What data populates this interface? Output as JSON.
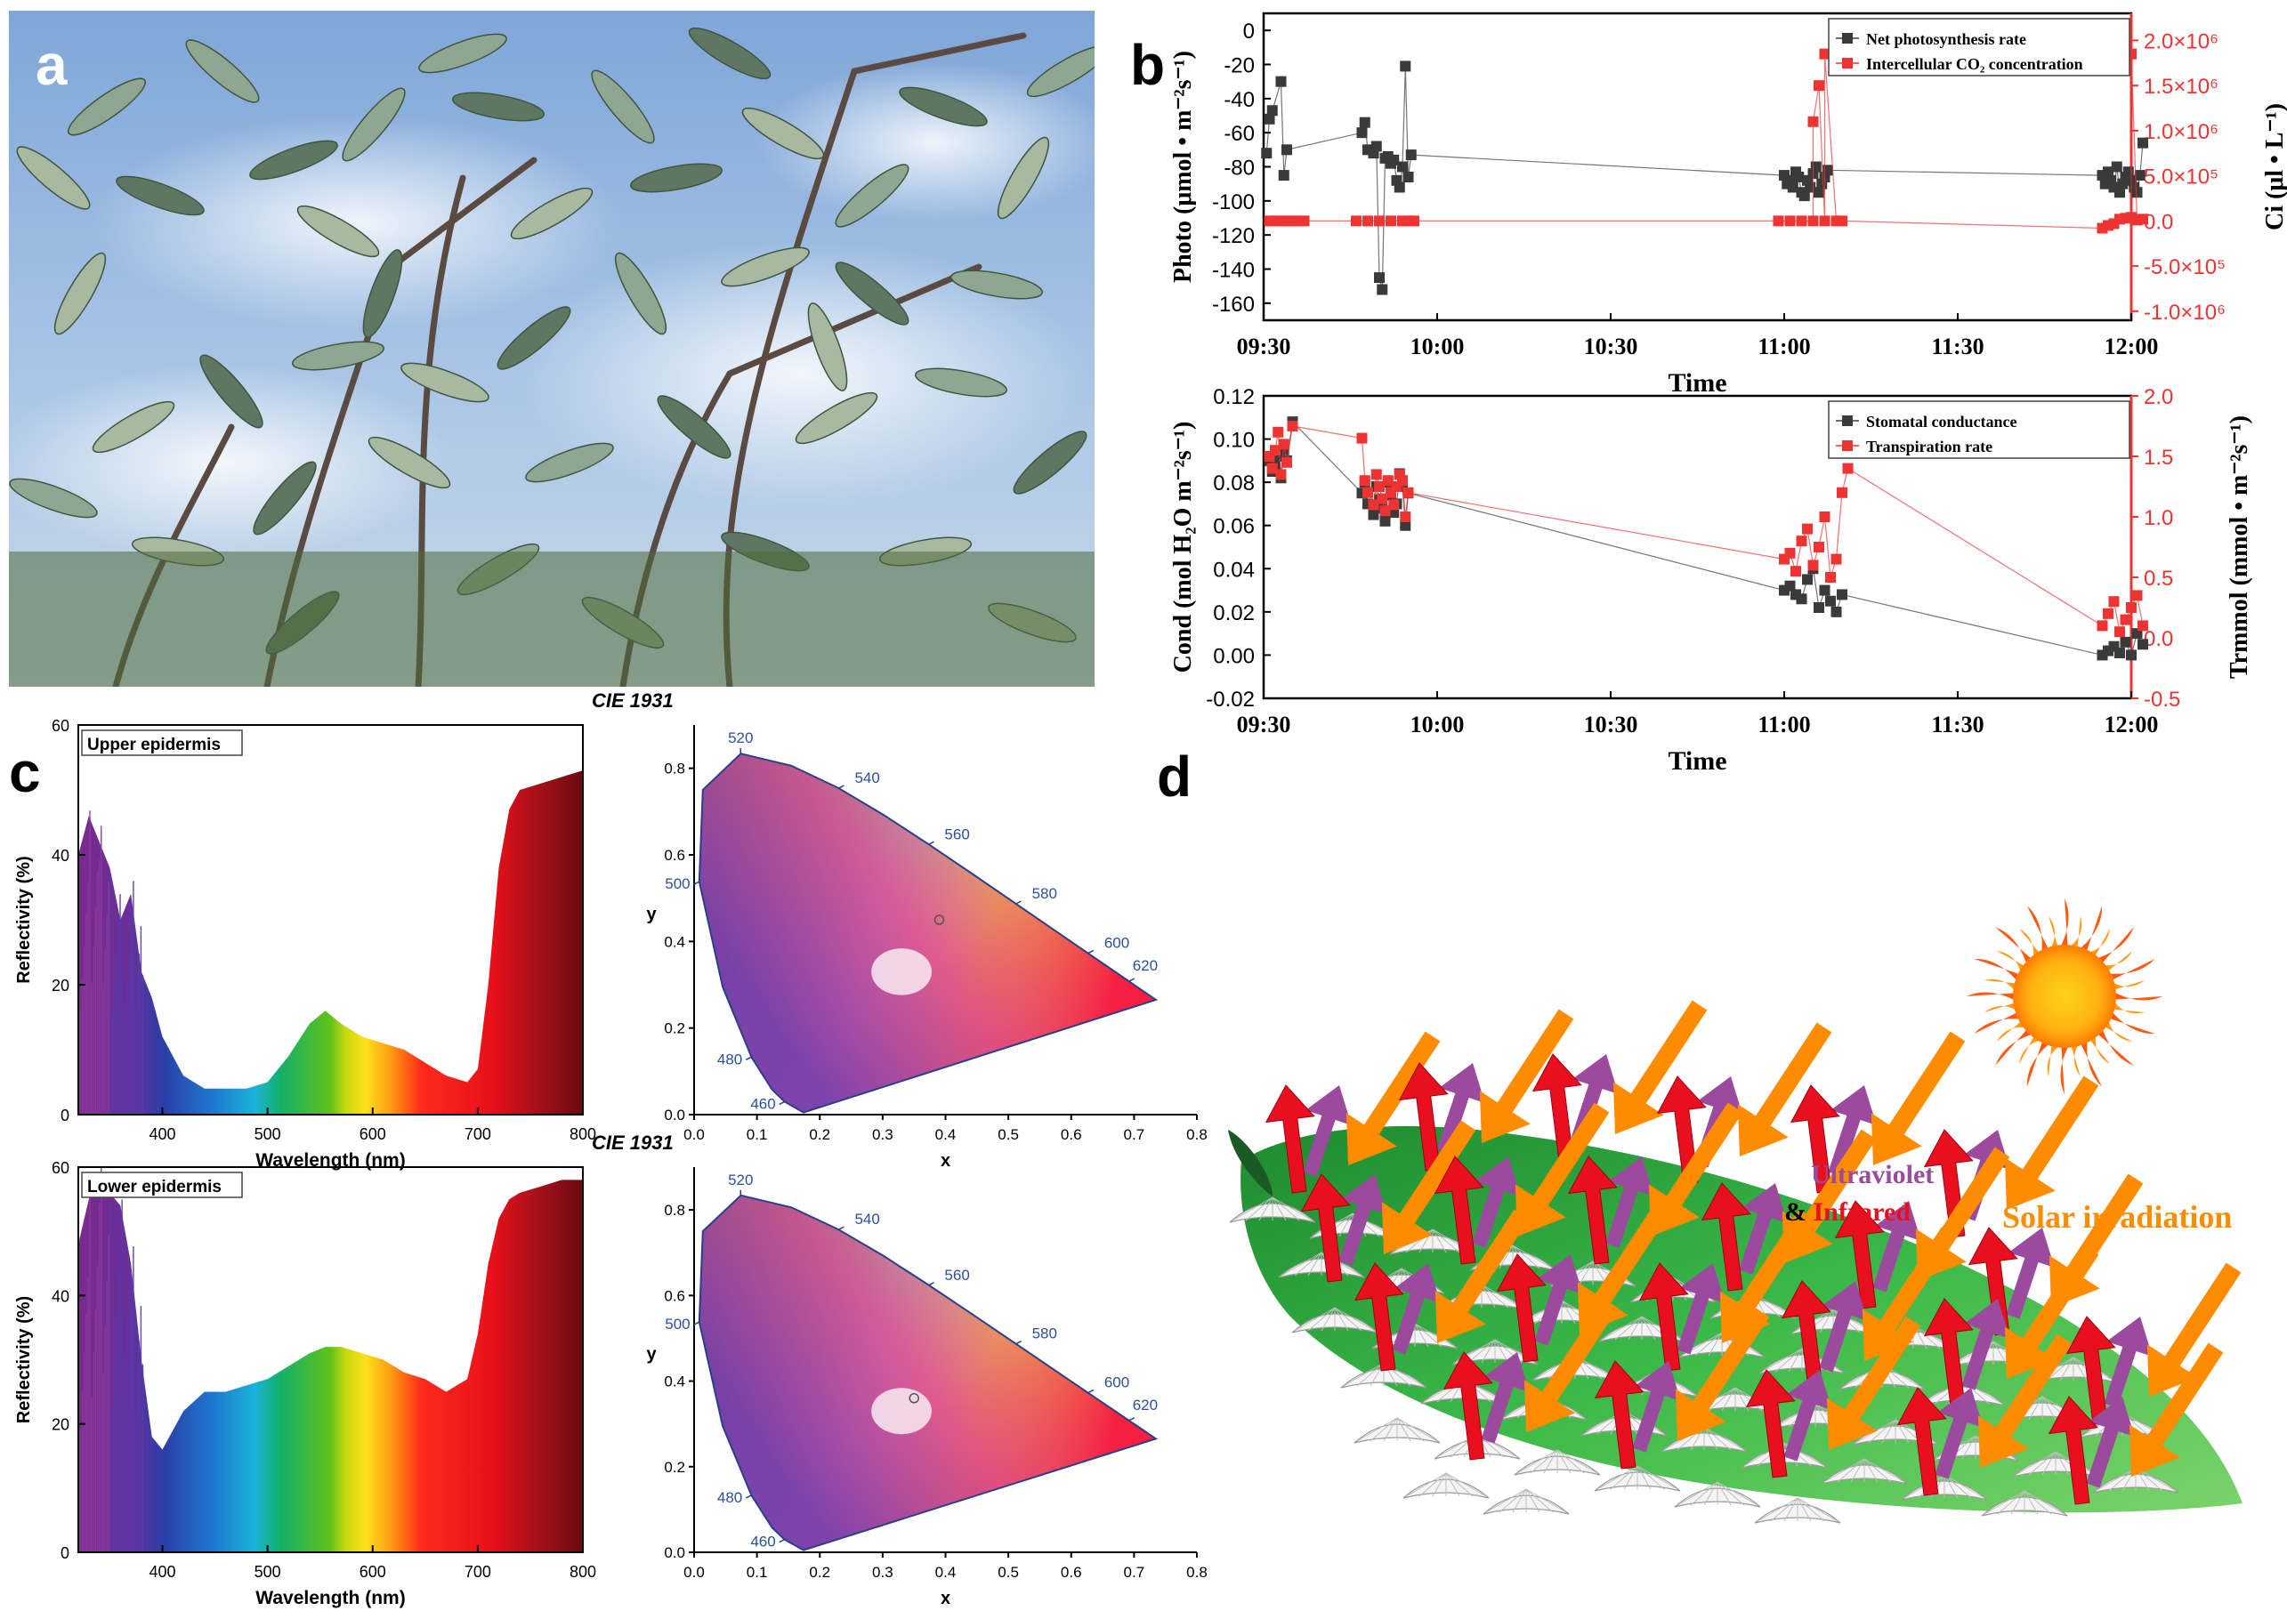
{
  "panel_labels": {
    "a": "a",
    "b": "b",
    "c": "c",
    "d": "d"
  },
  "photo": {
    "subject": "Sea buckthorn-like silvery willow leaves against blue sky"
  },
  "chart_data": [
    {
      "id": "b-top",
      "type": "scatter",
      "title": "",
      "xlabel": "Time",
      "ylabel": "Photo (μmol • m⁻²s⁻¹)",
      "y2label": "Ci (μl • L⁻¹)",
      "xticks": [
        "09:30",
        "10:00",
        "10:30",
        "11:00",
        "11:30",
        "12:00"
      ],
      "xlim_minutes": [
        0,
        150
      ],
      "ylim": [
        -170,
        10
      ],
      "yticks": [
        "0",
        "-20",
        "-40",
        "-60",
        "-80",
        "-100",
        "-120",
        "-140",
        "-160"
      ],
      "y2lim": [
        -1100000,
        2300000
      ],
      "y2ticks": [
        "2.0×10⁶",
        "1.5×10⁶",
        "1.0×10⁶",
        "5.0×10⁵",
        "0.0",
        "-5.0×10⁵",
        "-1.0×10⁶"
      ],
      "legend": [
        "Net photosynthesis rate",
        "Intercellular CO₂ concentration"
      ],
      "series": [
        {
          "name": "Net photosynthesis rate",
          "color": "#3a3a3a",
          "axis": "left",
          "x": [
            0.5,
            1,
            1.5,
            3,
            3.5,
            4,
            17,
            17.5,
            18,
            19,
            19.5,
            20,
            20.5,
            21,
            21.5,
            22,
            22.5,
            23,
            23.5,
            24,
            24.5,
            25,
            25.5,
            90,
            90.5,
            91,
            91.5,
            92,
            92.5,
            93,
            93.5,
            94,
            94.5,
            95,
            95.5,
            96,
            96.5,
            97,
            97.5,
            145,
            145.5,
            146,
            146.5,
            147,
            147.5,
            148,
            148.5,
            149,
            149.5,
            150,
            150.5,
            151,
            151.5,
            152
          ],
          "y": [
            -72,
            -52,
            -47,
            -30,
            -85,
            -70,
            -60,
            -54,
            -70,
            -72,
            -68,
            -145,
            -152,
            -75,
            -74,
            -78,
            -76,
            -88,
            -92,
            -80,
            -21,
            -86,
            -73,
            -85,
            -90,
            -88,
            -92,
            -83,
            -86,
            -95,
            -97,
            -88,
            -92,
            -84,
            -80,
            -95,
            -90,
            -86,
            -82,
            -85,
            -90,
            -83,
            -88,
            -92,
            -80,
            -95,
            -90,
            -86,
            -83,
            -88,
            -92,
            -95,
            -85,
            -66
          ]
        },
        {
          "name": "Intercellular CO₂ concentration",
          "color": "#ee3333",
          "axis": "right",
          "x": [
            1,
            2,
            3,
            4,
            5,
            6,
            7,
            16,
            18,
            20,
            22,
            24,
            25,
            26,
            89,
            91,
            93,
            95,
            97,
            99,
            100,
            95,
            96,
            97,
            145,
            146,
            147,
            148,
            149,
            150,
            151,
            152,
            150
          ],
          "y": [
            0,
            0,
            0,
            0,
            0,
            0,
            0,
            0,
            0,
            0,
            0,
            0,
            0,
            0,
            0,
            0,
            0,
            0,
            0,
            0,
            0,
            1100000,
            1500000,
            1850000,
            -80000,
            -50000,
            -30000,
            20000,
            30000,
            40000,
            10000,
            20000,
            1850000
          ]
        }
      ]
    },
    {
      "id": "b-bottom",
      "type": "scatter",
      "xlabel": "Time",
      "ylabel": "Cond (mol H₂O m⁻²s⁻¹)",
      "y2label": "Trmmol (mmol • m⁻²s⁻¹)",
      "xticks": [
        "09:30",
        "10:00",
        "10:30",
        "11:00",
        "11:30",
        "12:00"
      ],
      "xlim_minutes": [
        0,
        150
      ],
      "ylim": [
        -0.02,
        0.12
      ],
      "yticks": [
        "0.12",
        "0.10",
        "0.08",
        "0.06",
        "0.04",
        "0.02",
        "0.00",
        "-0.02"
      ],
      "y2lim": [
        -0.5,
        2.0
      ],
      "y2ticks": [
        "2.0",
        "1.5",
        "1.0",
        "0.5",
        "0.0",
        "-0.5"
      ],
      "legend": [
        "Stomatal conductance",
        "Transpiration rate"
      ],
      "series": [
        {
          "name": "Stomatal conductance",
          "color": "#3a3a3a",
          "axis": "left",
          "x": [
            1,
            1.5,
            2,
            2.5,
            3,
            3.5,
            4,
            5,
            17,
            17.5,
            18,
            19,
            19.5,
            20,
            20.5,
            21,
            21.5,
            22,
            22.5,
            23,
            23.5,
            24,
            24.5,
            25,
            90,
            91,
            92,
            93,
            94,
            95,
            96,
            97,
            98,
            99,
            100,
            145,
            146,
            147,
            148,
            149,
            150,
            151,
            152
          ],
          "y": [
            0.09,
            0.085,
            0.088,
            0.092,
            0.082,
            0.095,
            0.09,
            0.108,
            0.075,
            0.08,
            0.07,
            0.065,
            0.078,
            0.072,
            0.068,
            0.062,
            0.08,
            0.074,
            0.066,
            0.07,
            0.084,
            0.078,
            0.06,
            0.075,
            0.03,
            0.032,
            0.028,
            0.026,
            0.035,
            0.04,
            0.022,
            0.03,
            0.025,
            0.02,
            0.028,
            0.0,
            0.002,
            0.004,
            0.001,
            0.006,
            0.0,
            0.01,
            0.005
          ]
        },
        {
          "name": "Transpiration rate",
          "color": "#ee3333",
          "axis": "right",
          "x": [
            1,
            1.5,
            2,
            2.5,
            3,
            3.5,
            4,
            5,
            17,
            17.5,
            18,
            19,
            19.5,
            20,
            20.5,
            21,
            21.5,
            22,
            22.5,
            23,
            23.5,
            24,
            24.5,
            25,
            90,
            91,
            92,
            93,
            94,
            95,
            96,
            97,
            98,
            99,
            100,
            101,
            145,
            146,
            147,
            148,
            149,
            150,
            151,
            152
          ],
          "y": [
            1.5,
            1.4,
            1.55,
            1.7,
            1.35,
            1.6,
            1.45,
            1.75,
            1.65,
            1.3,
            1.2,
            1.1,
            1.35,
            1.25,
            1.15,
            1.05,
            1.3,
            1.2,
            1.1,
            1.25,
            1.35,
            1.3,
            1.0,
            1.2,
            0.65,
            0.7,
            0.55,
            0.8,
            0.9,
            0.6,
            0.75,
            1.0,
            0.5,
            0.65,
            1.2,
            1.4,
            0.1,
            0.2,
            0.3,
            0.05,
            0.15,
            0.25,
            0.35,
            0.1
          ]
        }
      ]
    },
    {
      "id": "c-upper-spectrum",
      "type": "bar",
      "title": "Upper epidermis",
      "xlabel": "Wavelength (nm)",
      "ylabel": "Reflectivity (%)",
      "xlim": [
        320,
        800
      ],
      "ylim": [
        0,
        60
      ],
      "xticks": [
        "400",
        "500",
        "600",
        "700",
        "800"
      ],
      "yticks": [
        "0",
        "20",
        "40",
        "60"
      ],
      "x": [
        320,
        330,
        340,
        350,
        360,
        370,
        380,
        390,
        400,
        420,
        440,
        460,
        480,
        500,
        520,
        540,
        555,
        570,
        590,
        610,
        630,
        650,
        670,
        690,
        700,
        710,
        720,
        730,
        740,
        760,
        780,
        800
      ],
      "values": [
        40,
        46,
        42,
        38,
        30,
        34,
        22,
        18,
        12,
        6,
        4,
        4,
        4,
        5,
        9,
        14,
        16,
        14,
        12,
        11,
        10,
        8,
        6,
        5,
        7,
        20,
        38,
        47,
        50,
        51,
        52,
        53
      ]
    },
    {
      "id": "c-upper-cie",
      "type": "scatter",
      "title": "CIE 1931",
      "xlabel": "x",
      "ylabel": "y",
      "xlim": [
        0,
        0.8
      ],
      "ylim": [
        0,
        0.9
      ],
      "xticks": [
        "0.0",
        "0.1",
        "0.2",
        "0.3",
        "0.4",
        "0.5",
        "0.6",
        "0.7",
        "0.8"
      ],
      "yticks": [
        "0.0",
        "0.2",
        "0.4",
        "0.6",
        "0.8"
      ],
      "wavelength_labels": [
        "460",
        "480",
        "500",
        "520",
        "540",
        "560",
        "580",
        "600",
        "620"
      ],
      "point": {
        "x": 0.39,
        "y": 0.45
      }
    },
    {
      "id": "c-lower-spectrum",
      "type": "bar",
      "title": "Lower epidermis",
      "xlabel": "Wavelength (nm)",
      "ylabel": "Reflectivity (%)",
      "xlim": [
        320,
        800
      ],
      "ylim": [
        0,
        60
      ],
      "xticks": [
        "400",
        "500",
        "600",
        "700",
        "800"
      ],
      "yticks": [
        "0",
        "20",
        "40",
        "60"
      ],
      "x": [
        320,
        330,
        340,
        350,
        360,
        370,
        380,
        390,
        400,
        420,
        440,
        460,
        480,
        500,
        520,
        540,
        555,
        570,
        590,
        610,
        630,
        650,
        670,
        690,
        700,
        710,
        720,
        730,
        740,
        760,
        780,
        800
      ],
      "values": [
        48,
        55,
        58,
        56,
        54,
        45,
        30,
        18,
        16,
        22,
        25,
        25,
        26,
        27,
        29,
        31,
        32,
        32,
        31,
        30,
        28,
        27,
        25,
        27,
        34,
        45,
        52,
        55,
        56,
        57,
        58,
        58
      ]
    },
    {
      "id": "c-lower-cie",
      "type": "scatter",
      "title": "CIE 1931",
      "xlabel": "x",
      "ylabel": "y",
      "xlim": [
        0,
        0.8
      ],
      "ylim": [
        0,
        0.9
      ],
      "xticks": [
        "0.0",
        "0.1",
        "0.2",
        "0.3",
        "0.4",
        "0.5",
        "0.6",
        "0.7",
        "0.8"
      ],
      "yticks": [
        "0.0",
        "0.2",
        "0.4",
        "0.6",
        "0.8"
      ],
      "wavelength_labels": [
        "460",
        "480",
        "500",
        "520",
        "540",
        "560",
        "580",
        "600",
        "620"
      ],
      "point": {
        "x": 0.35,
        "y": 0.36
      }
    }
  ],
  "diagram": {
    "uv_ir_line1": "Ultraviolet",
    "amp": "& ",
    "infrared": "Infrared",
    "solar": "Solar irradiation"
  },
  "colors": {
    "photo_series": "#3a3a3a",
    "ci_series": "#ee3333",
    "right_axis": "#ee3333",
    "orange_arrow": "#ff8c00",
    "red_arrow": "#e8101f",
    "purple_arrow": "#9b4a9e",
    "leaf_green": "#2da640",
    "cie_border": "#2a3f8a",
    "wl_label": "#2a4fa0"
  }
}
